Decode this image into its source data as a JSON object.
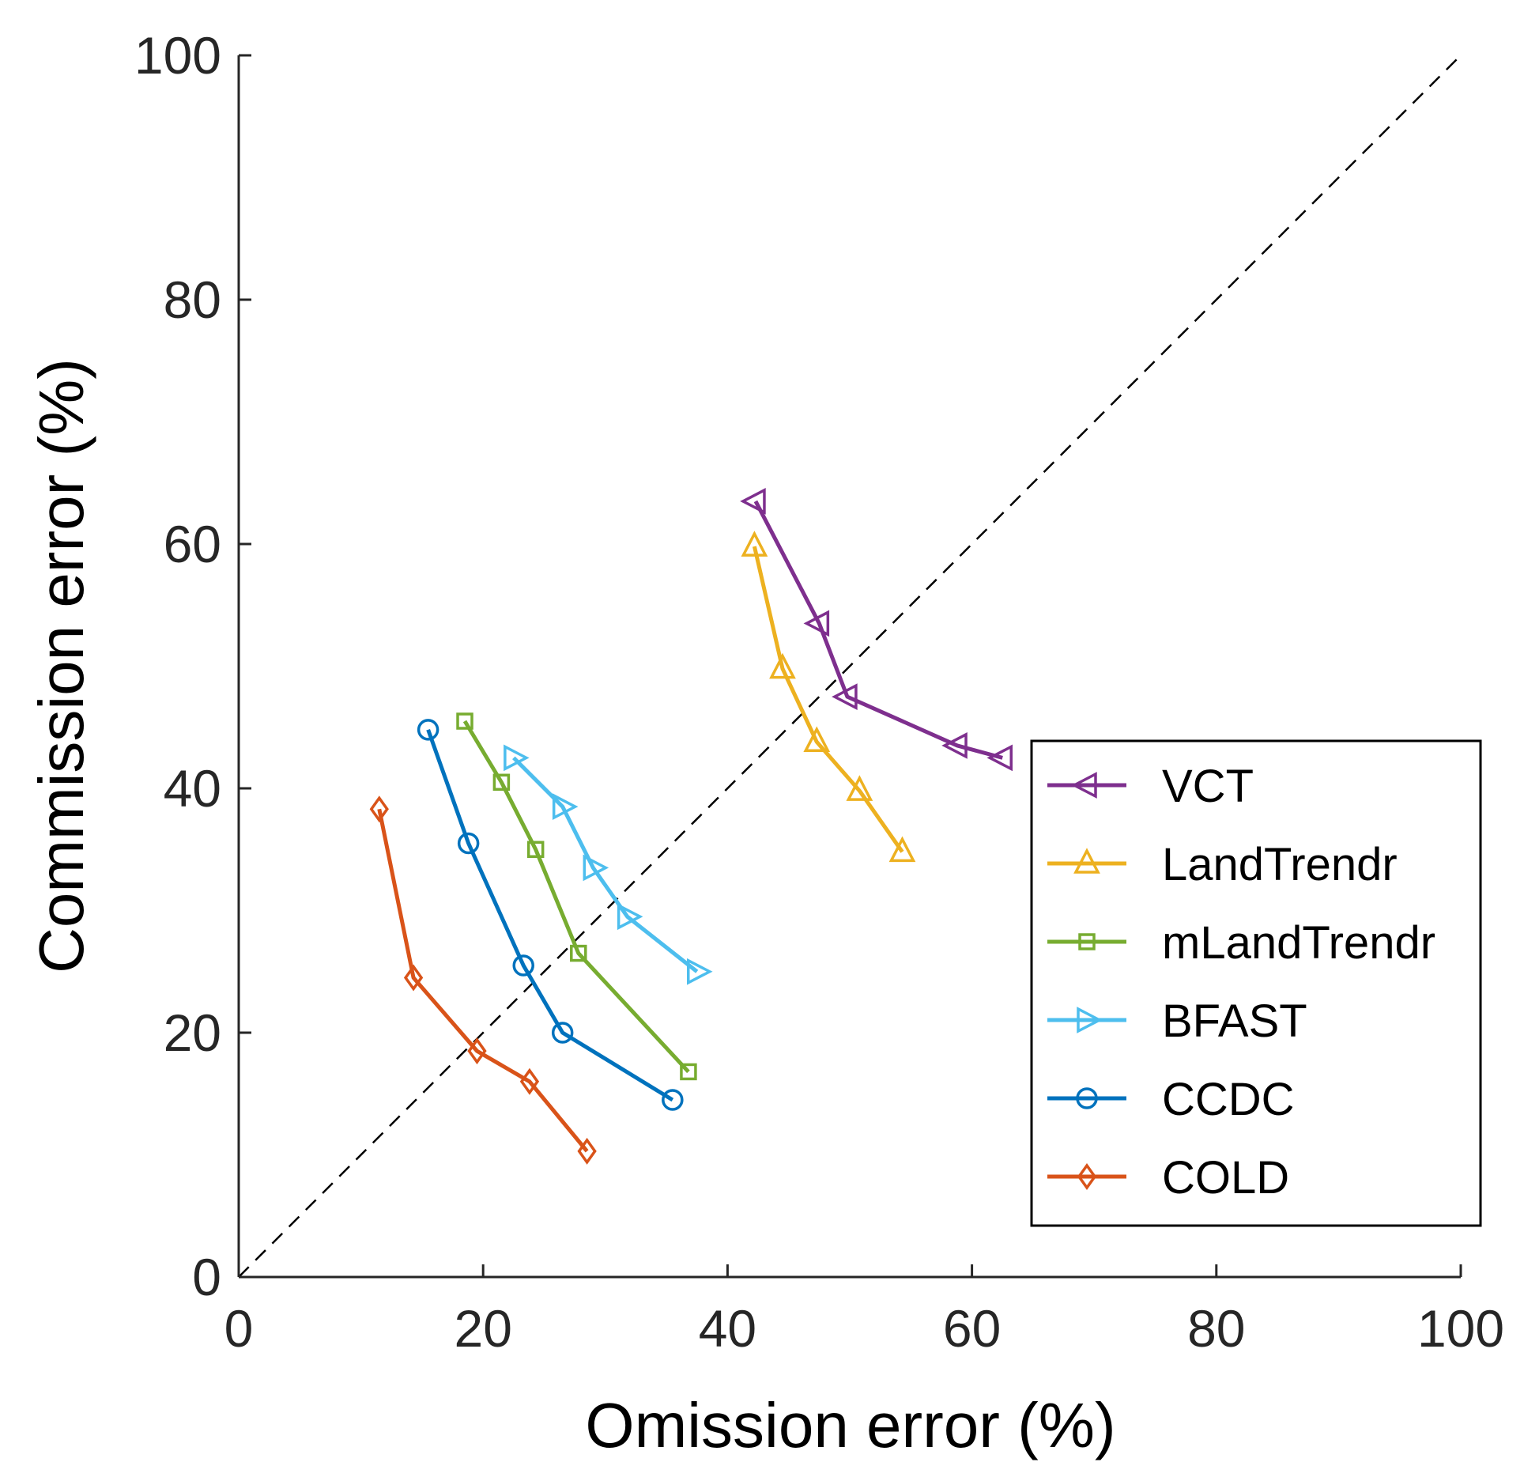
{
  "chart_data": {
    "type": "line",
    "title": "",
    "xlabel": "Omission error (%)",
    "ylabel": "Commission error (%)",
    "xlim": [
      0,
      100
    ],
    "ylim": [
      0,
      100
    ],
    "xticks": [
      0,
      20,
      40,
      60,
      80,
      100
    ],
    "yticks": [
      0,
      20,
      40,
      60,
      80,
      100
    ],
    "grid": false,
    "legend_position": "bottom-right",
    "reference_line": {
      "style": "dashed",
      "from": [
        0,
        0
      ],
      "to": [
        100,
        100
      ],
      "color": "#000000"
    },
    "series": [
      {
        "name": "VCT",
        "color": "#7E2F8E",
        "marker": "triangle-left",
        "x": [
          42.3,
          47.5,
          49.8,
          58.8,
          62.5
        ],
        "y": [
          63.5,
          53.5,
          47.5,
          43.5,
          42.5
        ]
      },
      {
        "name": "LandTrendr",
        "color": "#EDB120",
        "marker": "triangle-up",
        "x": [
          42.2,
          44.5,
          47.3,
          50.8,
          54.3
        ],
        "y": [
          59.8,
          49.8,
          43.8,
          39.8,
          34.8
        ]
      },
      {
        "name": "mLandTrendr",
        "color": "#77AC30",
        "marker": "square",
        "x": [
          18.5,
          21.5,
          24.3,
          27.8,
          36.8
        ],
        "y": [
          45.5,
          40.5,
          35.0,
          26.5,
          16.8
        ]
      },
      {
        "name": "BFAST",
        "color": "#4DBEEE",
        "marker": "triangle-right",
        "x": [
          22.5,
          26.5,
          29.0,
          31.8,
          37.5
        ],
        "y": [
          42.5,
          38.5,
          33.5,
          29.5,
          25.0
        ]
      },
      {
        "name": "CCDC",
        "color": "#0072BD",
        "marker": "circle",
        "x": [
          15.5,
          18.8,
          23.3,
          26.5,
          35.5
        ],
        "y": [
          44.8,
          35.5,
          25.5,
          20.0,
          14.5
        ]
      },
      {
        "name": "COLD",
        "color": "#D95319",
        "marker": "diamond",
        "x": [
          11.5,
          14.3,
          19.5,
          23.8,
          28.5
        ],
        "y": [
          38.3,
          24.5,
          18.5,
          16.0,
          10.3
        ]
      }
    ]
  }
}
